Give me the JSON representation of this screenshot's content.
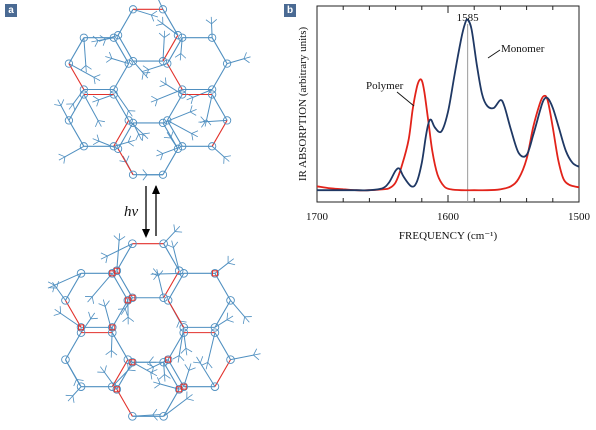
{
  "panels": {
    "a": "a",
    "b": "b"
  },
  "left_panel": {
    "arrow_label": "hv",
    "colors": {
      "molecule": "#4f8fc0",
      "bond": "#e2312b"
    }
  },
  "chart_data": {
    "type": "line",
    "xlabel": "FREQUENCY (cm⁻¹)",
    "ylabel": "IR ABSORPTION (arbitrary units)",
    "xlim": [
      1700,
      1500
    ],
    "x_ticks": [
      "1700",
      "1600",
      "1500"
    ],
    "reference_line": {
      "x": 1585,
      "label": "1585"
    },
    "y_units": "arbitrary",
    "series": [
      {
        "name": "Monomer",
        "color": "#1f3864",
        "points": [
          [
            1700,
            0.06
          ],
          [
            1690,
            0.06
          ],
          [
            1680,
            0.06
          ],
          [
            1670,
            0.06
          ],
          [
            1660,
            0.06
          ],
          [
            1650,
            0.07
          ],
          [
            1645,
            0.1
          ],
          [
            1640,
            0.16
          ],
          [
            1637,
            0.17
          ],
          [
            1634,
            0.13
          ],
          [
            1628,
            0.08
          ],
          [
            1624,
            0.1
          ],
          [
            1620,
            0.2
          ],
          [
            1617,
            0.33
          ],
          [
            1615,
            0.4
          ],
          [
            1613,
            0.42
          ],
          [
            1610,
            0.38
          ],
          [
            1605,
            0.36
          ],
          [
            1600,
            0.46
          ],
          [
            1595,
            0.65
          ],
          [
            1590,
            0.83
          ],
          [
            1587,
            0.91
          ],
          [
            1585,
            0.93
          ],
          [
            1582,
            0.88
          ],
          [
            1578,
            0.7
          ],
          [
            1574,
            0.55
          ],
          [
            1570,
            0.49
          ],
          [
            1565,
            0.48
          ],
          [
            1560,
            0.52
          ],
          [
            1557,
            0.49
          ],
          [
            1552,
            0.37
          ],
          [
            1546,
            0.25
          ],
          [
            1540,
            0.24
          ],
          [
            1535,
            0.34
          ],
          [
            1530,
            0.46
          ],
          [
            1527,
            0.52
          ],
          [
            1524,
            0.53
          ],
          [
            1520,
            0.48
          ],
          [
            1515,
            0.37
          ],
          [
            1510,
            0.26
          ],
          [
            1505,
            0.2
          ],
          [
            1500,
            0.18
          ]
        ]
      },
      {
        "name": "Polymer",
        "color": "#e2231a",
        "points": [
          [
            1700,
            0.08
          ],
          [
            1690,
            0.07
          ],
          [
            1680,
            0.065
          ],
          [
            1670,
            0.06
          ],
          [
            1660,
            0.06
          ],
          [
            1650,
            0.065
          ],
          [
            1645,
            0.07
          ],
          [
            1640,
            0.1
          ],
          [
            1635,
            0.19
          ],
          [
            1630,
            0.32
          ],
          [
            1627,
            0.47
          ],
          [
            1624,
            0.58
          ],
          [
            1622,
            0.62
          ],
          [
            1620,
            0.62
          ],
          [
            1618,
            0.56
          ],
          [
            1615,
            0.41
          ],
          [
            1612,
            0.26
          ],
          [
            1608,
            0.14
          ],
          [
            1603,
            0.08
          ],
          [
            1598,
            0.065
          ],
          [
            1590,
            0.06
          ],
          [
            1580,
            0.06
          ],
          [
            1570,
            0.06
          ],
          [
            1560,
            0.065
          ],
          [
            1552,
            0.08
          ],
          [
            1546,
            0.12
          ],
          [
            1540,
            0.22
          ],
          [
            1535,
            0.38
          ],
          [
            1530,
            0.5
          ],
          [
            1527,
            0.54
          ],
          [
            1524,
            0.52
          ],
          [
            1520,
            0.38
          ],
          [
            1516,
            0.22
          ],
          [
            1512,
            0.12
          ],
          [
            1508,
            0.09
          ],
          [
            1504,
            0.08
          ],
          [
            1500,
            0.075
          ]
        ]
      }
    ],
    "annotations": [
      "Polymer",
      "Monomer"
    ]
  }
}
